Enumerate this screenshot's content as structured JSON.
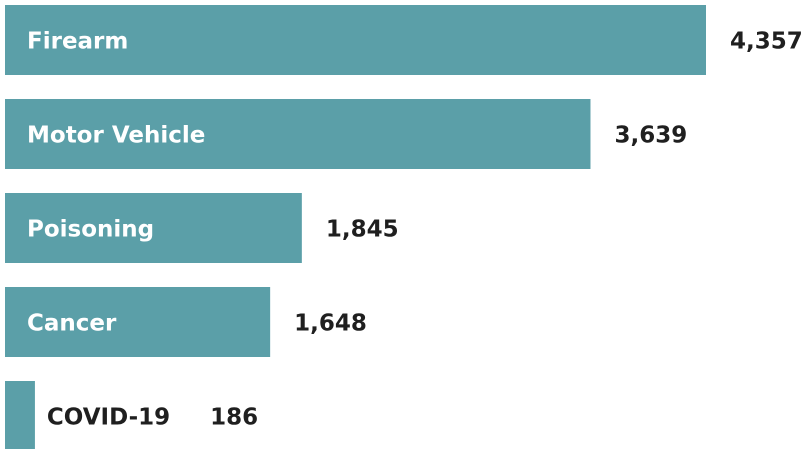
{
  "chart_data": {
    "type": "bar",
    "orientation": "horizontal",
    "categories": [
      "Firearm",
      "Motor Vehicle",
      "Poisoning",
      "Cancer",
      "COVID-19"
    ],
    "values": [
      4357,
      3639,
      1845,
      1648,
      186
    ],
    "value_labels": [
      "4,357",
      "3,639",
      "1,845",
      "1,648",
      "186"
    ],
    "color": "#5b9fa8"
  }
}
